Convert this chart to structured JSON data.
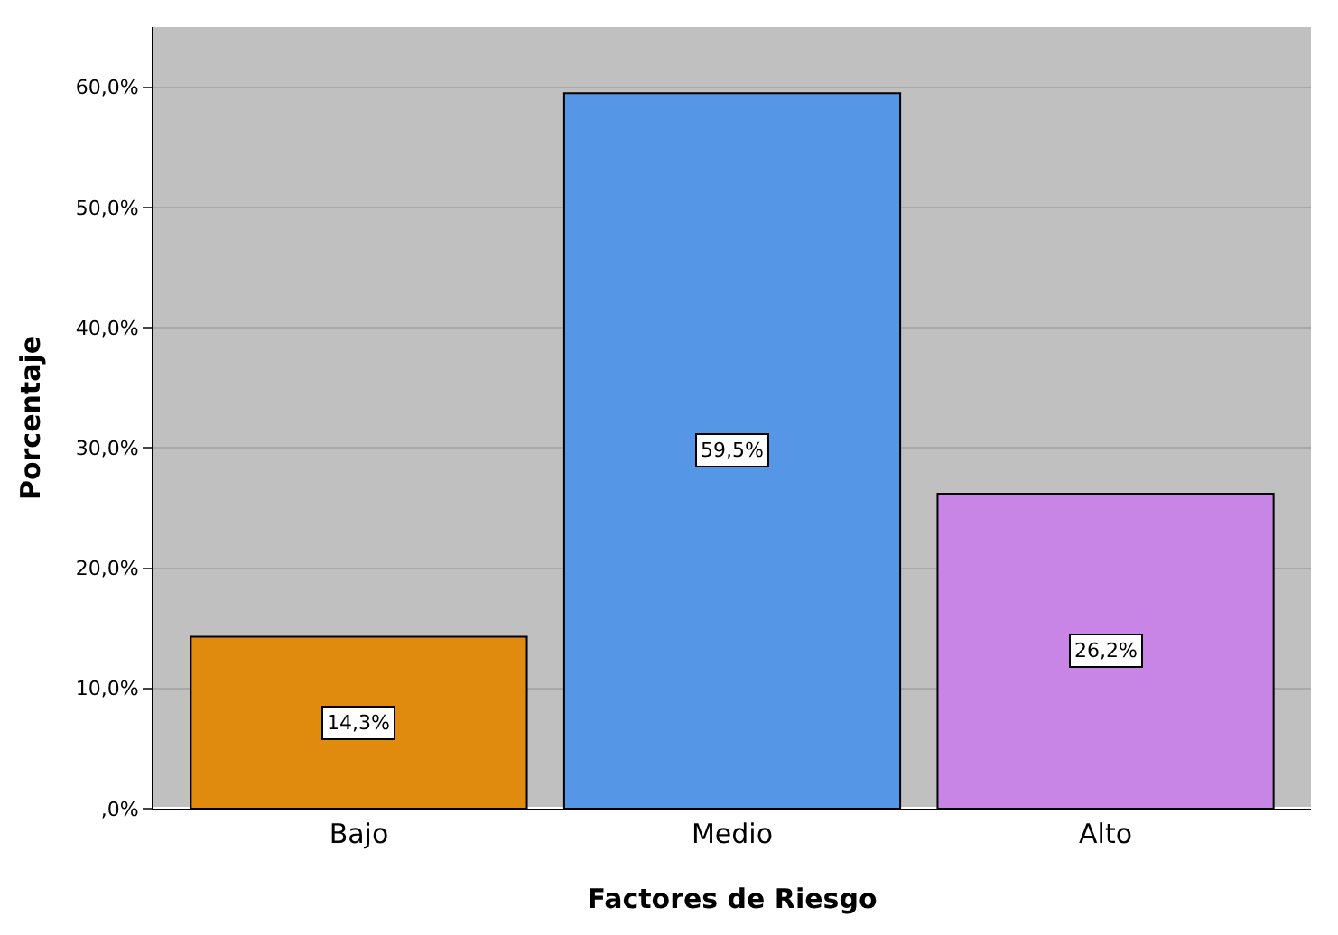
{
  "chart_data": {
    "type": "bar",
    "xlabel": "Factores de Riesgo",
    "ylabel": "Porcentaje",
    "categories": [
      "Bajo",
      "Medio",
      "Alto"
    ],
    "values": [
      14.3,
      59.5,
      26.2
    ],
    "colors": [
      "#e08a0e",
      "#5597e6",
      "#c985e6"
    ],
    "value_labels": [
      "14,3%",
      "59,5%",
      "26,2%"
    ],
    "ylim": [
      0,
      65
    ],
    "yticks": [
      {
        "value": 0,
        "label": ",0%"
      },
      {
        "value": 10,
        "label": "10,0%"
      },
      {
        "value": 20,
        "label": "20,0%"
      },
      {
        "value": 30,
        "label": "30,0%"
      },
      {
        "value": 40,
        "label": "40,0%"
      },
      {
        "value": 50,
        "label": "50,0%"
      },
      {
        "value": 60,
        "label": "60,0%"
      }
    ],
    "grid": "y"
  }
}
